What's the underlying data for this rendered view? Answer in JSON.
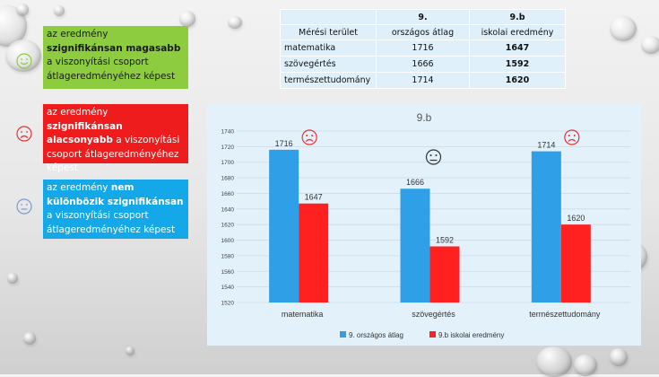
{
  "legend": {
    "items": [
      {
        "pre": "az eredmény ",
        "bold": "szignifikánsan magasabb",
        "post": " a viszonyítási csoport átlageredményéhez képest",
        "icon": "smiley-happy-icon",
        "color": "#8ccc3e",
        "icon_color": "#8ccc3e"
      },
      {
        "pre": "az eredmény ",
        "bold": "szignifikánsan alacsonyabb",
        "post": " a viszonyítási csoport átlageredményéhez képest",
        "icon": "smiley-sad-icon",
        "color": "#ee1c1c",
        "icon_color": "#e83030"
      },
      {
        "pre": "az eredmény ",
        "bold": "nem különbözik szignifikánsan",
        "post": " a viszonyítási csoport átlageredményéhez képest",
        "icon": "smiley-neutral-icon",
        "color": "#15a8e8",
        "icon_color": "#7a9cd0"
      }
    ]
  },
  "table": {
    "header_area": "Mérési terület",
    "col1_top": "9.",
    "col1_bottom": "országos átlag",
    "col2_top": "9.b",
    "col2_bottom": "iskolai eredmény",
    "rows": [
      {
        "area": "matematika",
        "national": "1716",
        "school": "1647"
      },
      {
        "area": "szövegértés",
        "national": "1666",
        "school": "1592"
      },
      {
        "area": "természettudomány",
        "national": "1714",
        "school": "1620"
      }
    ]
  },
  "chart_data": {
    "type": "bar",
    "title": "9.b",
    "categories": [
      "matematika",
      "szövegértés",
      "természettudomány"
    ],
    "series": [
      {
        "name": "9. országos átlag",
        "values": [
          1716,
          1666,
          1714
        ],
        "color": "#2f9fe8"
      },
      {
        "name": "9.b iskolai eredmény",
        "values": [
          1647,
          1592,
          1620
        ],
        "color": "#ff2020"
      }
    ],
    "ylim": [
      1520,
      1740
    ],
    "yticks": [
      1520,
      1540,
      1560,
      1580,
      1600,
      1620,
      1640,
      1660,
      1680,
      1700,
      1720,
      1740
    ],
    "grid": true,
    "legend_position": "bottom",
    "markers": [
      "smiley-sad-icon",
      "smiley-neutral-icon",
      "smiley-sad-icon"
    ]
  }
}
